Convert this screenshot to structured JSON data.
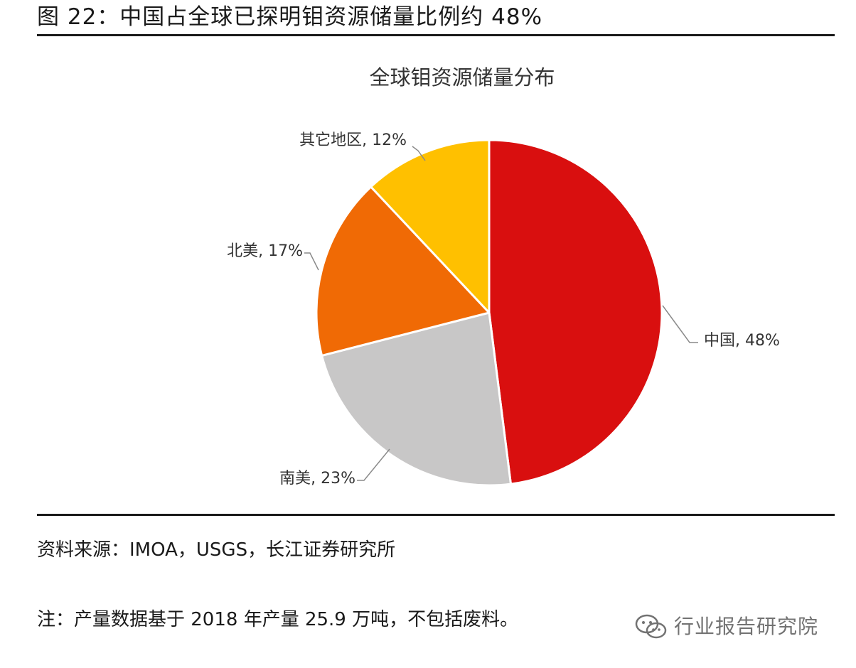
{
  "figure_title": "图 22：中国占全球已探明钼资源储量比例约 48%",
  "source_note": "资料来源：IMOA，USGS，长江证券研究所",
  "footnote": "注：产量数据基于 2018 年产量 25.9 万吨，不包括废料。",
  "watermark": {
    "text": "行业报告研究院",
    "icon": "wechat-icon"
  },
  "chart_data": {
    "type": "pie",
    "title": "全球钼资源储量分布",
    "slices": [
      {
        "label": "中国, 48%",
        "value": 48,
        "color": "#D90F0F"
      },
      {
        "label": "南美, 23%",
        "value": 23,
        "color": "#C8C7C7"
      },
      {
        "label": "北美, 17%",
        "value": 17,
        "color": "#F06A05"
      },
      {
        "label": "其它地区, 12%",
        "value": 12,
        "color": "#FFC000"
      }
    ],
    "start": "12 o'clock",
    "direction": "clockwise",
    "legend": "none"
  }
}
